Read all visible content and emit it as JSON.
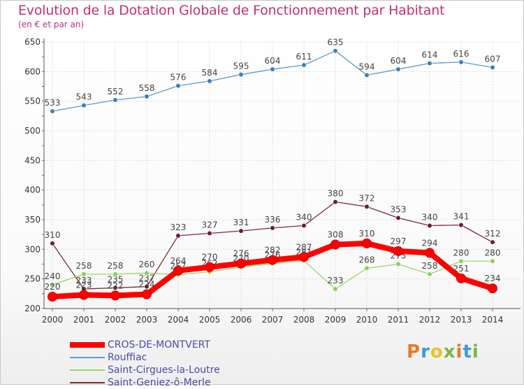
{
  "title": "Evolution de la Dotation Globale de Fonctionnement par Habitant",
  "subtitle": "(en € et par an)",
  "logo": {
    "text": "Proxiti",
    "colors": [
      "#e8792b",
      "#3a9be0",
      "#e8c22b",
      "#7ab648",
      "#e8792b",
      "#3a9be0",
      "#7ab648"
    ]
  },
  "chart_data": {
    "type": "line",
    "title": "Evolution de la Dotation Globale de Fonctionnement par Habitant",
    "subtitle": "(en € et par an)",
    "xlabel": "",
    "ylabel": "",
    "ylim": [
      200,
      650
    ],
    "yticks": [
      200,
      250,
      300,
      350,
      400,
      450,
      500,
      550,
      600,
      650
    ],
    "grid": true,
    "x": [
      "2000",
      "2001",
      "2002",
      "2003",
      "2004",
      "2005",
      "2006",
      "2007",
      "2008",
      "2009",
      "2010",
      "2011",
      "2012",
      "2013",
      "2014"
    ],
    "series": [
      {
        "name": "Rouffiac",
        "color": "#5b9bd1",
        "marker": "#3a7fc0",
        "values": [
          533,
          543,
          552,
          558,
          576,
          584,
          595,
          604,
          611,
          635,
          594,
          604,
          614,
          616,
          607
        ]
      },
      {
        "name": "Saint-Geniez-ô-Merle",
        "color": "#7a2b35",
        "marker": "#6a1e28",
        "values": [
          310,
          233,
          235,
          237,
          323,
          327,
          331,
          336,
          340,
          380,
          372,
          353,
          340,
          341,
          312
        ]
      },
      {
        "name": "Saint-Cirgues-la-Loutre",
        "color": "#9ad76a",
        "marker": "#8ccf5a",
        "values": [
          240,
          258,
          258,
          260,
          257,
          262,
          270,
          276,
          281,
          233,
          268,
          275,
          258,
          280,
          280
        ]
      },
      {
        "name": "CROS-DE-MONTVERT",
        "color": "#ff0000",
        "marker": "#ff0000",
        "values": [
          220,
          223,
          222,
          224,
          264,
          270,
          276,
          282,
          287,
          308,
          310,
          297,
          294,
          251,
          234
        ]
      }
    ],
    "legend": [
      "CROS-DE-MONTVERT",
      "Rouffiac",
      "Saint-Cirgues-la-Loutre",
      "Saint-Geniez-ô-Merle"
    ]
  }
}
